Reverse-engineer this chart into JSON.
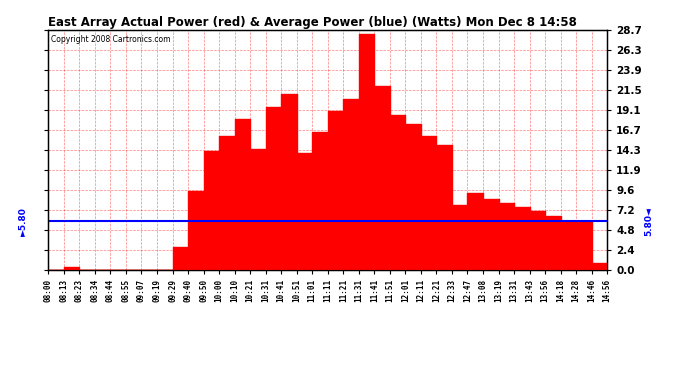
{
  "title": "East Array Actual Power (red) & Average Power (blue) (Watts) Mon Dec 8 14:58",
  "copyright": "Copyright 2008 Cartronics.com",
  "avg_power": 5.8,
  "ymax": 28.7,
  "ymin": 0.0,
  "yticks": [
    0.0,
    2.4,
    4.8,
    7.2,
    9.6,
    11.9,
    14.3,
    16.7,
    19.1,
    21.5,
    23.9,
    26.3,
    28.7
  ],
  "bg_color": "#ffffff",
  "red_color": "#ff0000",
  "blue_color": "#0000ff",
  "time_labels": [
    "08:00",
    "08:13",
    "08:23",
    "08:34",
    "08:44",
    "08:55",
    "09:07",
    "09:19",
    "09:29",
    "09:40",
    "09:50",
    "10:00",
    "10:10",
    "10:21",
    "10:31",
    "10:41",
    "10:51",
    "11:01",
    "11:11",
    "11:21",
    "11:31",
    "11:41",
    "11:51",
    "12:01",
    "12:11",
    "12:21",
    "12:33",
    "12:47",
    "13:08",
    "13:19",
    "13:31",
    "13:43",
    "13:56",
    "14:18",
    "14:28",
    "14:46",
    "14:56"
  ],
  "power_values": [
    0.0,
    0.3,
    0.0,
    0.0,
    0.0,
    0.0,
    0.0,
    0.0,
    2.8,
    9.5,
    14.2,
    16.0,
    18.0,
    14.5,
    19.5,
    21.0,
    14.0,
    16.5,
    19.0,
    20.5,
    28.2,
    22.0,
    18.5,
    17.5,
    16.0,
    15.0,
    7.8,
    9.2,
    8.5,
    8.0,
    7.5,
    7.0,
    6.5,
    5.8,
    5.8,
    0.8,
    0.0
  ],
  "figsize": [
    6.9,
    3.75
  ],
  "dpi": 100
}
